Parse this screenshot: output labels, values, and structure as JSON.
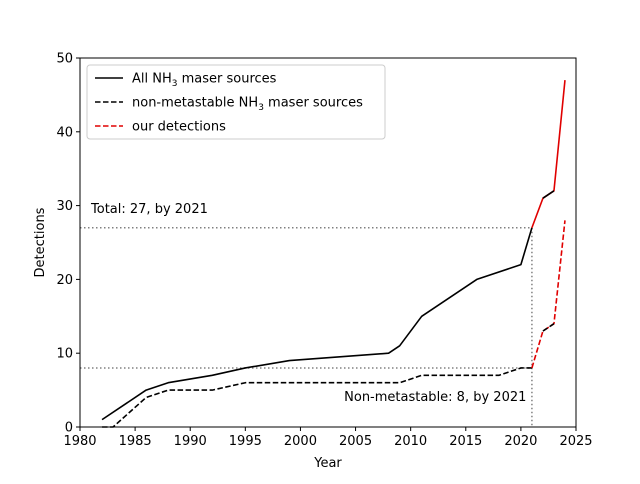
{
  "chart_data": {
    "type": "line",
    "xlabel": "Year",
    "ylabel": "Detections",
    "xlim": [
      1980,
      2025
    ],
    "ylim": [
      0,
      50
    ],
    "xticks": [
      1980,
      1985,
      1990,
      1995,
      2000,
      2005,
      2010,
      2015,
      2020,
      2025
    ],
    "yticks": [
      0,
      10,
      20,
      30,
      40,
      50
    ],
    "grid": false,
    "legend_position": "top-left",
    "legend": [
      {
        "name": "All NH",
        "sub": "3",
        "suffix": " maser sources",
        "color": "#000000",
        "dashed": false
      },
      {
        "name": "non-metastable NH",
        "sub": "3",
        "suffix": " maser sources",
        "color": "#000000",
        "dashed": true
      },
      {
        "name": "our detections",
        "sub": "",
        "suffix": "",
        "color": "#e00000",
        "dashed": true
      }
    ],
    "series": [
      {
        "color": "#000000",
        "dashed": false,
        "x": [
          1982,
          1986,
          1988,
          1992,
          1995,
          1999,
          2008,
          2009,
          2011,
          2016,
          2020,
          2021
        ],
        "y": [
          1,
          5,
          6,
          7,
          8,
          9,
          10,
          11,
          15,
          20,
          22,
          27
        ]
      },
      {
        "color": "#000000",
        "dashed": true,
        "x": [
          1982,
          1983,
          1986,
          1988,
          1992,
          1995,
          2009,
          2011,
          2018,
          2020,
          2021
        ],
        "y": [
          0,
          0,
          4,
          5,
          5,
          6,
          6,
          7,
          7,
          8,
          8
        ]
      },
      {
        "color": "#e00000",
        "dashed": false,
        "x": [
          2021,
          2022,
          2023,
          2024
        ],
        "y": [
          27,
          31,
          32,
          47
        ]
      },
      {
        "color": "#000000",
        "dashed": false,
        "x": [
          2022,
          2023
        ],
        "y": [
          31,
          32
        ]
      },
      {
        "color": "#e00000",
        "dashed": true,
        "x": [
          2021,
          2022,
          2023,
          2024
        ],
        "y": [
          8,
          13,
          14,
          28
        ]
      },
      {
        "color": "#000000",
        "dashed": true,
        "x": [
          2022,
          2023
        ],
        "y": [
          13,
          14
        ]
      }
    ],
    "reference_lines": [
      {
        "orientation": "horizontal",
        "value": 27,
        "color": "#808080",
        "style": "dotted"
      },
      {
        "orientation": "horizontal",
        "value": 8,
        "color": "#808080",
        "style": "dotted"
      },
      {
        "orientation": "vertical",
        "value": 2021,
        "color": "#808080",
        "style": "dotted"
      }
    ],
    "annotations": [
      {
        "text": "Total: 27, by 2021",
        "x": 1981,
        "y": 29,
        "anchor": "start"
      },
      {
        "text": "Non-metastable: 8, by 2021",
        "x": 2020.5,
        "y": 3.5,
        "anchor": "end"
      }
    ]
  }
}
